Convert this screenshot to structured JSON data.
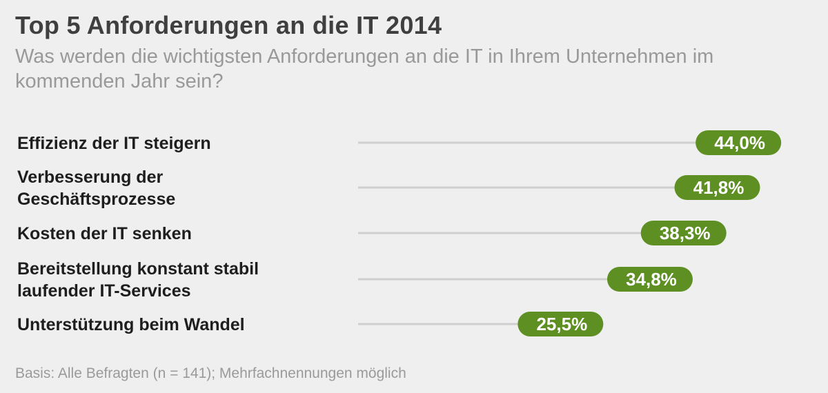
{
  "chart_data": {
    "type": "bar",
    "title": "Top 5 Anforderungen an die IT 2014",
    "subtitle": "Was werden die wichtigsten Anforderungen an die IT in Ihrem Unternehmen im kommenden Jahr sein?",
    "categories": [
      [
        "Effizienz der IT steigern"
      ],
      [
        "Verbesserung der",
        "Geschäftsprozesse"
      ],
      [
        "Kosten der IT senken"
      ],
      [
        "Bereitstellung konstant stabil",
        "laufender IT-Services"
      ],
      [
        "Unterstützung  beim Wandel"
      ]
    ],
    "values": [
      44.0,
      41.8,
      38.3,
      34.8,
      25.5
    ],
    "value_labels": [
      "44,0%",
      "41,8%",
      "38,3%",
      "34,8%",
      "25,5%"
    ],
    "unit": "%",
    "orientation": "horizontal",
    "grid": false,
    "footnote": "Basis: Alle Befragten (n = 141); Mehrfachnennungen möglich"
  },
  "colors": {
    "background": "#efefef",
    "bar_line": "#cfcfcf",
    "pill": "#5e8f22",
    "title": "#3f3f3f",
    "subtitle": "#999999",
    "label": "#1e1e1e",
    "footnote": "#9a9a9a"
  }
}
